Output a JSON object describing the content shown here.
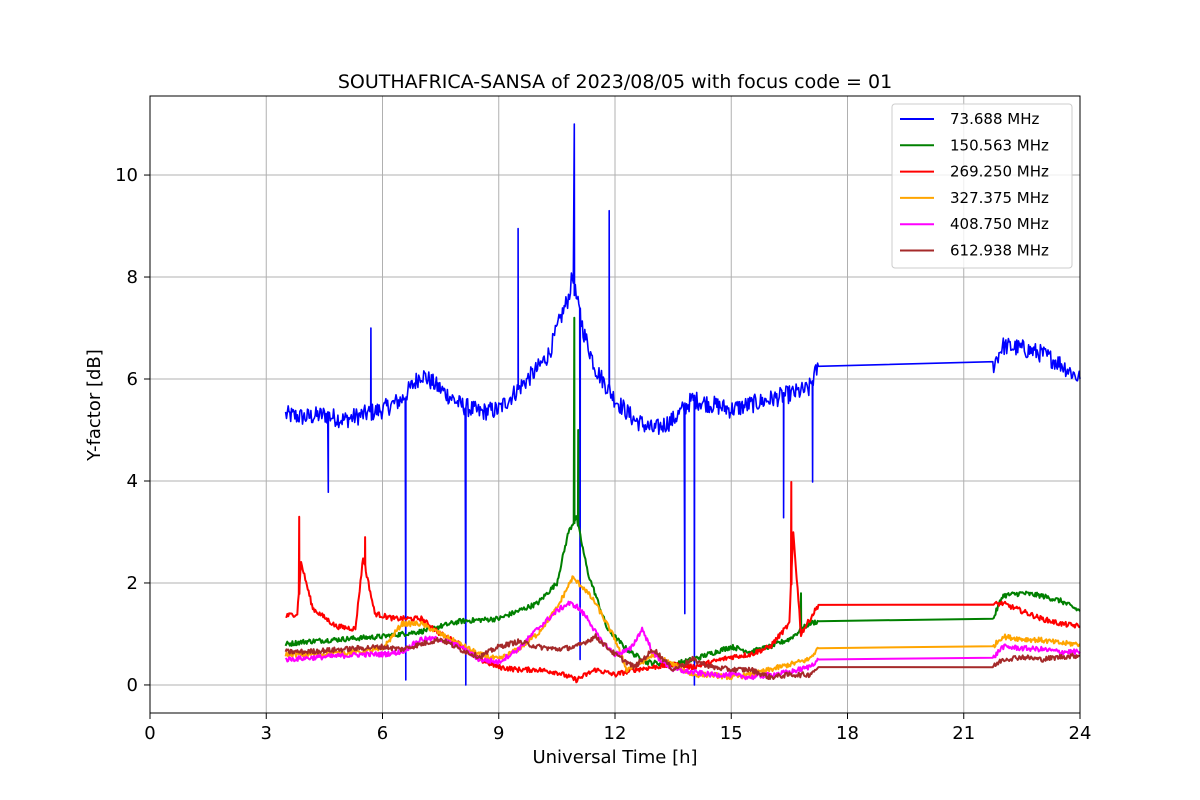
{
  "chart_data": {
    "type": "line",
    "title": "SOUTHAFRICA-SANSA of 2023/08/05 with focus code = 01",
    "xlabel": "Universal Time [h]",
    "ylabel": "Y-factor [dB]",
    "xlim": [
      0,
      24
    ],
    "ylim": [
      -0.55,
      11.55
    ],
    "xticks": [
      0,
      3,
      6,
      9,
      12,
      15,
      18,
      21,
      24
    ],
    "xtick_labels": [
      "0",
      "3",
      "6",
      "9",
      "12",
      "15",
      "18",
      "21",
      "24"
    ],
    "yticks": [
      0,
      2,
      4,
      6,
      8,
      10
    ],
    "ytick_labels": [
      "0",
      "2",
      "4",
      "6",
      "8",
      "10"
    ],
    "grid": true,
    "legend_position": "top-right",
    "series": [
      {
        "name": " 73.688 MHz",
        "color": "#0000ff",
        "x": [
          3.5,
          4.0,
          4.5,
          5.0,
          5.5,
          6.0,
          6.5,
          7.0,
          7.5,
          8.0,
          8.5,
          9.0,
          9.5,
          10.0,
          10.3,
          10.6,
          10.8,
          10.9,
          11.0,
          11.2,
          11.5,
          12.0,
          12.5,
          13.0,
          13.5,
          14.0,
          14.5,
          15.0,
          15.5,
          16.0,
          16.5,
          17.0,
          17.25,
          21.75,
          22.0,
          22.5,
          23.0,
          23.5,
          24.0
        ],
        "y": [
          5.3,
          5.25,
          5.3,
          5.2,
          5.3,
          5.4,
          5.6,
          6.1,
          5.8,
          5.5,
          5.35,
          5.4,
          5.8,
          6.2,
          6.5,
          7.2,
          7.6,
          8.0,
          7.6,
          6.9,
          6.2,
          5.6,
          5.2,
          5.0,
          5.2,
          5.6,
          5.5,
          5.4,
          5.5,
          5.6,
          5.7,
          5.8,
          6.25,
          6.25,
          6.65,
          6.6,
          6.5,
          6.3,
          6.0
        ],
        "spikes": [
          [
            4.6,
            3.78
          ],
          [
            5.7,
            7.0
          ],
          [
            6.6,
            0.1
          ],
          [
            8.15,
            0.0
          ],
          [
            9.5,
            8.95
          ],
          [
            10.95,
            11.0
          ],
          [
            11.1,
            0.5
          ],
          [
            11.85,
            9.3
          ],
          [
            13.8,
            1.4
          ],
          [
            14.05,
            0.0
          ],
          [
            16.35,
            3.28
          ],
          [
            17.1,
            3.98
          ]
        ]
      },
      {
        "name": "150.563 MHz",
        "color": "#008000",
        "x": [
          3.5,
          4.0,
          5.0,
          6.0,
          7.0,
          8.0,
          9.0,
          9.5,
          10.0,
          10.5,
          10.8,
          11.0,
          11.3,
          11.8,
          12.3,
          12.8,
          13.5,
          14.0,
          15.0,
          15.5,
          16.0,
          16.5,
          17.0,
          17.25,
          21.75,
          22.0,
          22.5,
          23.0,
          23.5,
          24.0
        ],
        "y": [
          0.8,
          0.85,
          0.9,
          0.95,
          1.05,
          1.25,
          1.3,
          1.45,
          1.6,
          2.0,
          3.0,
          3.3,
          2.2,
          1.1,
          0.7,
          0.45,
          0.4,
          0.5,
          0.75,
          0.65,
          0.75,
          0.9,
          1.2,
          1.25,
          1.28,
          1.75,
          1.8,
          1.75,
          1.65,
          1.45
        ],
        "spikes": [
          [
            10.95,
            7.2
          ],
          [
            11.05,
            5.0
          ],
          [
            16.8,
            1.8
          ]
        ]
      },
      {
        "name": "269.250 MHz",
        "color": "#ff0000",
        "x": [
          3.5,
          3.8,
          3.9,
          4.2,
          4.8,
          5.3,
          5.5,
          5.8,
          6.3,
          7.0,
          7.5,
          8.0,
          8.5,
          9.0,
          9.5,
          10.0,
          10.5,
          11.0,
          11.5,
          12.0,
          12.5,
          13.0,
          13.5,
          14.0,
          14.5,
          15.0,
          15.5,
          16.0,
          16.5,
          16.6,
          16.8,
          17.25,
          21.75,
          22.0,
          22.5,
          23.0,
          23.5,
          24.0
        ],
        "y": [
          1.35,
          1.4,
          2.4,
          1.5,
          1.15,
          1.1,
          2.5,
          1.4,
          1.3,
          1.3,
          1.0,
          0.8,
          0.5,
          0.35,
          0.3,
          0.3,
          0.25,
          0.1,
          0.3,
          0.2,
          0.3,
          0.35,
          0.4,
          0.35,
          0.45,
          0.55,
          0.6,
          0.75,
          1.2,
          3.0,
          1.0,
          1.57,
          1.58,
          1.6,
          1.45,
          1.3,
          1.2,
          1.15
        ],
        "spikes": [
          [
            3.85,
            3.3
          ],
          [
            5.55,
            2.9
          ],
          [
            16.55,
            3.98
          ]
        ]
      },
      {
        "name": "327.375 MHz",
        "color": "#ffa500",
        "x": [
          3.5,
          4.5,
          5.5,
          6.0,
          6.5,
          7.0,
          7.5,
          8.0,
          8.5,
          9.0,
          9.5,
          10.0,
          10.5,
          10.9,
          11.2,
          11.5,
          12.0,
          12.3,
          12.6,
          13.0,
          13.5,
          14.0,
          14.5,
          15.0,
          15.5,
          16.0,
          16.5,
          17.0,
          17.25,
          21.75,
          22.0,
          22.5,
          23.0,
          23.5,
          24.0
        ],
        "y": [
          0.6,
          0.6,
          0.65,
          0.7,
          1.2,
          1.2,
          1.0,
          0.8,
          0.6,
          0.5,
          0.7,
          1.0,
          1.5,
          2.1,
          1.9,
          1.6,
          0.9,
          0.3,
          0.4,
          0.6,
          0.4,
          0.2,
          0.2,
          0.15,
          0.2,
          0.3,
          0.4,
          0.5,
          0.72,
          0.75,
          0.95,
          0.9,
          0.88,
          0.82,
          0.8
        ],
        "spikes": []
      },
      {
        "name": "408.750 MHz",
        "color": "#ff00ff",
        "x": [
          3.5,
          4.5,
          5.5,
          6.0,
          6.5,
          7.0,
          7.5,
          8.0,
          8.5,
          9.0,
          9.5,
          10.0,
          10.5,
          10.8,
          11.0,
          11.3,
          11.6,
          12.0,
          12.4,
          12.7,
          13.0,
          13.5,
          14.0,
          14.5,
          15.0,
          15.5,
          16.0,
          16.5,
          17.0,
          17.25,
          21.75,
          22.0,
          22.5,
          23.0,
          23.5,
          24.0
        ],
        "y": [
          0.5,
          0.55,
          0.6,
          0.6,
          0.65,
          0.9,
          0.9,
          0.75,
          0.5,
          0.45,
          0.7,
          1.1,
          1.45,
          1.6,
          1.55,
          1.3,
          0.9,
          0.6,
          0.7,
          1.1,
          0.6,
          0.3,
          0.25,
          0.2,
          0.2,
          0.15,
          0.2,
          0.25,
          0.35,
          0.5,
          0.52,
          0.75,
          0.72,
          0.7,
          0.65,
          0.65
        ],
        "spikes": []
      },
      {
        "name": "612.938 MHz",
        "color": "#a52a2a",
        "x": [
          3.5,
          4.0,
          5.0,
          6.0,
          6.5,
          7.0,
          7.5,
          8.0,
          8.5,
          9.0,
          9.5,
          10.0,
          10.5,
          11.0,
          11.5,
          12.0,
          12.5,
          13.0,
          13.5,
          14.0,
          14.5,
          15.0,
          15.5,
          16.0,
          16.5,
          17.0,
          17.25,
          21.75,
          22.0,
          22.5,
          23.0,
          23.5,
          24.0
        ],
        "y": [
          0.65,
          0.65,
          0.7,
          0.75,
          0.7,
          0.8,
          0.9,
          0.7,
          0.55,
          0.75,
          0.85,
          0.75,
          0.7,
          0.75,
          0.95,
          0.6,
          0.35,
          0.7,
          0.3,
          0.5,
          0.35,
          0.3,
          0.3,
          0.15,
          0.2,
          0.2,
          0.35,
          0.35,
          0.5,
          0.55,
          0.5,
          0.55,
          0.58
        ],
        "spikes": []
      }
    ]
  }
}
